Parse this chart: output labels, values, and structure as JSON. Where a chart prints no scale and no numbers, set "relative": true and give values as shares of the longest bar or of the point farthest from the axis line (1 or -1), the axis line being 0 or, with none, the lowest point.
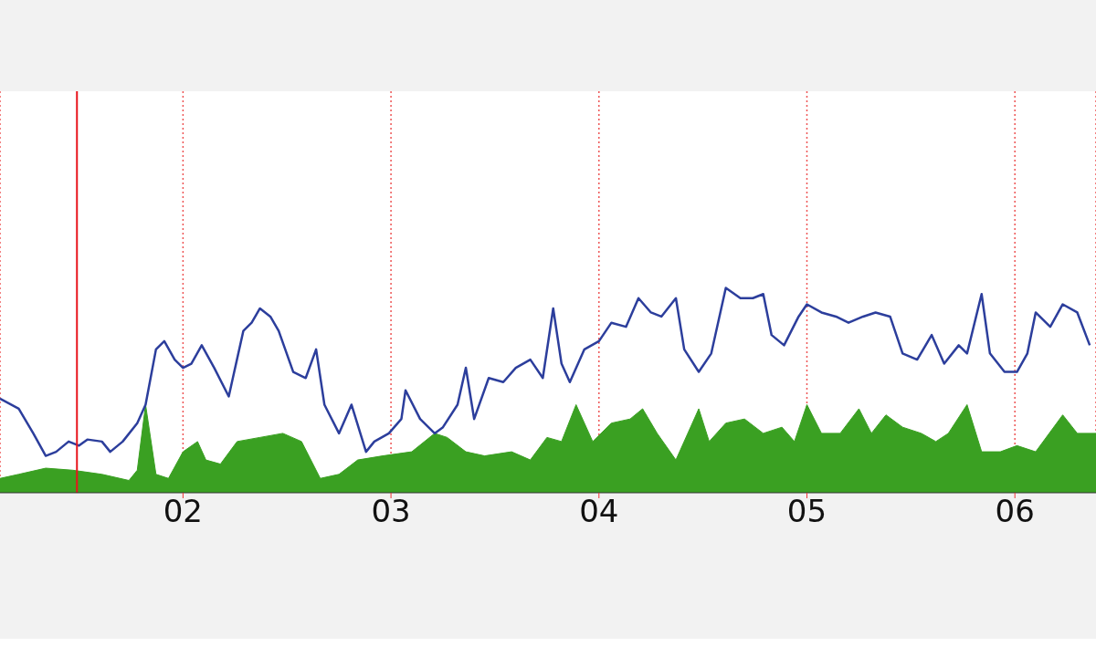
{
  "chart_data": {
    "type": "line",
    "relative": true,
    "xlim": [
      1.12,
      6.39
    ],
    "xticks": [
      {
        "value": 2,
        "label": "02"
      },
      {
        "value": 3,
        "label": "03"
      },
      {
        "value": 4,
        "label": "04"
      },
      {
        "value": 5,
        "label": "05"
      },
      {
        "value": 6,
        "label": "06"
      }
    ],
    "grid": "x",
    "legend": false,
    "ref_lines": [
      {
        "axis": "x",
        "value": 1.49,
        "color": "#e8141c"
      }
    ],
    "series": [
      {
        "type": "area",
        "color": "#3aa022",
        "x": [
          1.12,
          1.21,
          1.34,
          1.47,
          1.61,
          1.74,
          1.78,
          1.82,
          1.87,
          1.93,
          2.0,
          2.07,
          2.11,
          2.18,
          2.26,
          2.37,
          2.48,
          2.57,
          2.66,
          2.75,
          2.84,
          2.96,
          3.1,
          3.21,
          3.27,
          3.36,
          3.45,
          3.58,
          3.67,
          3.75,
          3.82,
          3.89,
          3.97,
          4.06,
          4.15,
          4.21,
          4.28,
          4.37,
          4.48,
          4.53,
          4.61,
          4.7,
          4.79,
          4.88,
          4.94,
          5.0,
          5.07,
          5.16,
          5.25,
          5.31,
          5.38,
          5.46,
          5.55,
          5.62,
          5.68,
          5.77,
          5.84,
          5.93,
          6.01,
          6.1,
          6.23,
          6.3,
          6.39
        ],
        "values": [
          0.07,
          0.09,
          0.12,
          0.11,
          0.09,
          0.06,
          0.11,
          0.43,
          0.09,
          0.07,
          0.2,
          0.25,
          0.16,
          0.14,
          0.25,
          0.27,
          0.29,
          0.25,
          0.07,
          0.09,
          0.16,
          0.18,
          0.2,
          0.29,
          0.27,
          0.2,
          0.18,
          0.2,
          0.16,
          0.27,
          0.25,
          0.43,
          0.25,
          0.34,
          0.36,
          0.41,
          0.29,
          0.16,
          0.41,
          0.25,
          0.34,
          0.36,
          0.29,
          0.32,
          0.25,
          0.43,
          0.29,
          0.29,
          0.41,
          0.29,
          0.38,
          0.32,
          0.29,
          0.25,
          0.29,
          0.43,
          0.2,
          0.2,
          0.23,
          0.2,
          0.38,
          0.29,
          0.29
        ]
      },
      {
        "color": "#2c3e9c",
        "x": [
          1.12,
          1.21,
          1.28,
          1.34,
          1.39,
          1.45,
          1.5,
          1.54,
          1.61,
          1.65,
          1.71,
          1.78,
          1.82,
          1.87,
          1.91,
          1.96,
          2.0,
          2.04,
          2.09,
          2.15,
          2.22,
          2.29,
          2.33,
          2.37,
          2.42,
          2.46,
          2.53,
          2.59,
          2.64,
          2.68,
          2.75,
          2.81,
          2.88,
          2.92,
          2.99,
          3.05,
          3.07,
          3.14,
          3.21,
          3.25,
          3.32,
          3.36,
          3.4,
          3.47,
          3.54,
          3.6,
          3.67,
          3.73,
          3.78,
          3.82,
          3.86,
          3.93,
          4.0,
          4.06,
          4.13,
          4.19,
          4.25,
          4.3,
          4.37,
          4.41,
          4.48,
          4.54,
          4.61,
          4.68,
          4.74,
          4.79,
          4.83,
          4.89,
          4.96,
          5.0,
          5.07,
          5.14,
          5.2,
          5.27,
          5.33,
          5.4,
          5.46,
          5.53,
          5.6,
          5.66,
          5.73,
          5.77,
          5.84,
          5.88,
          5.95,
          6.01,
          6.06,
          6.1,
          6.17,
          6.23,
          6.3,
          6.36
        ],
        "values": [
          0.46,
          0.41,
          0.29,
          0.18,
          0.2,
          0.25,
          0.23,
          0.26,
          0.25,
          0.2,
          0.25,
          0.34,
          0.43,
          0.7,
          0.74,
          0.65,
          0.61,
          0.63,
          0.72,
          0.61,
          0.47,
          0.79,
          0.83,
          0.9,
          0.86,
          0.79,
          0.59,
          0.56,
          0.7,
          0.43,
          0.29,
          0.43,
          0.2,
          0.25,
          0.29,
          0.36,
          0.5,
          0.36,
          0.29,
          0.32,
          0.43,
          0.61,
          0.36,
          0.56,
          0.54,
          0.61,
          0.65,
          0.56,
          0.9,
          0.63,
          0.54,
          0.7,
          0.74,
          0.83,
          0.81,
          0.95,
          0.88,
          0.86,
          0.95,
          0.7,
          0.59,
          0.68,
          1,
          0.95,
          0.95,
          0.97,
          0.77,
          0.72,
          0.86,
          0.92,
          0.88,
          0.86,
          0.83,
          0.86,
          0.88,
          0.86,
          0.68,
          0.65,
          0.77,
          0.63,
          0.72,
          0.68,
          0.97,
          0.68,
          0.59,
          0.59,
          0.68,
          0.88,
          0.81,
          0.92,
          0.88,
          0.72
        ]
      }
    ]
  }
}
